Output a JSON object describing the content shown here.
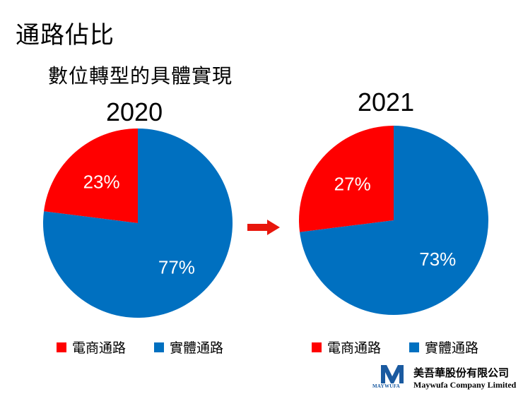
{
  "title": "通路佔比",
  "subtitle": "數位轉型的具體實現",
  "colors": {
    "online": "#ff0000",
    "physical": "#0070c0",
    "arrow": "#e8160c"
  },
  "chart_data": [
    {
      "type": "pie",
      "title": "2020",
      "categories": [
        "電商通路",
        "實體通路"
      ],
      "values": [
        23,
        77
      ],
      "labels": [
        "23%",
        "77%"
      ],
      "legend_position": "bottom"
    },
    {
      "type": "pie",
      "title": "2021",
      "categories": [
        "電商通路",
        "實體通路"
      ],
      "values": [
        27,
        73
      ],
      "labels": [
        "27%",
        "73%"
      ],
      "legend_position": "bottom"
    }
  ],
  "legend": {
    "online_label": "電商通路",
    "physical_label": "實體通路"
  },
  "company": {
    "logo_icon": "maywufa-logo-icon",
    "logo_text": "MAYWUFA",
    "name_zh": "美吾華股份有限公司",
    "name_en": "Maywufa Company Limited"
  },
  "arrow_icon": "right-arrow-icon"
}
